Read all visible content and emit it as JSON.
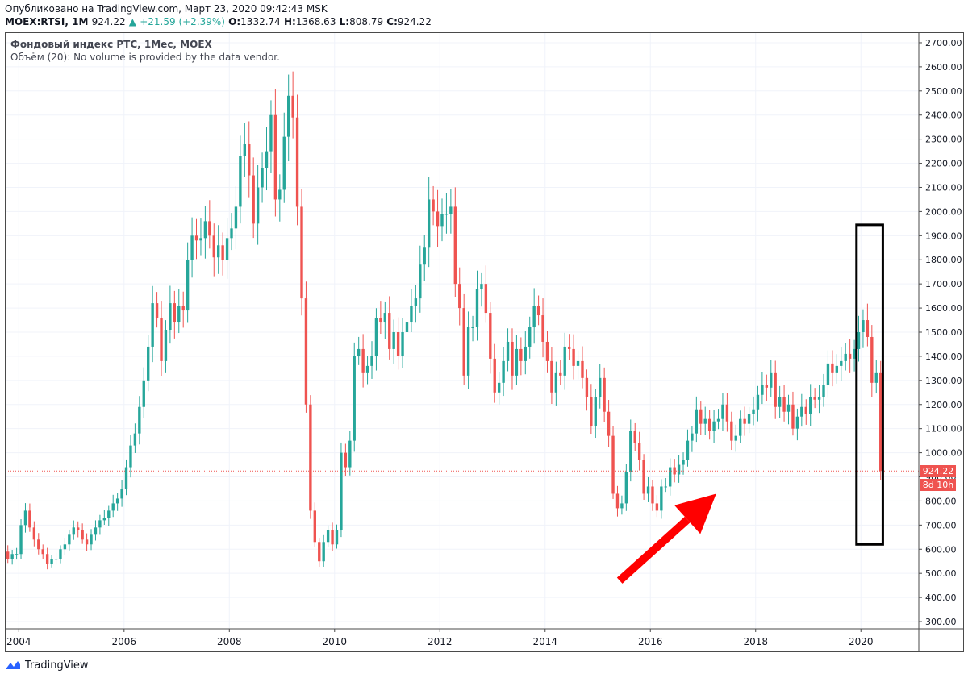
{
  "header": {
    "published": "Опубликовано на TradingView.com, Март 23, 2020 09:42:43 MSK",
    "symbol": "MOEX:RTSI, 1M",
    "last": "924.22",
    "change": "+21.59 (+2.39%)",
    "change_arrow": "▲",
    "o_label": "O:",
    "o": "1332.74",
    "h_label": "H:",
    "h": "1368.63",
    "l_label": "L:",
    "l": "808.79",
    "c_label": "C:",
    "c": "924.22"
  },
  "legend": {
    "title": "Фондовый индекс РТС, 1Мес, MOEX",
    "volume": "Объём (20): No volume is provided by the data vendor."
  },
  "footer": {
    "brand": "TradingView"
  },
  "price_tag": "924.22",
  "time_tag": "8d 10h",
  "colors": {
    "up": "#26a69a",
    "down": "#ef5350",
    "annotation": "#ff0000",
    "box": "#000000",
    "grid": "#f0f3fa"
  },
  "chart_data": {
    "type": "candlestick",
    "interval": "1M",
    "x_ticks": [
      "2004",
      "2006",
      "2008",
      "2010",
      "2012",
      "2014",
      "2016",
      "2018",
      "2020"
    ],
    "y_ticks": [
      300,
      400,
      500,
      600,
      700,
      800,
      900,
      1000,
      1100,
      1200,
      1300,
      1400,
      1500,
      1600,
      1700,
      1800,
      1900,
      2000,
      2100,
      2200,
      2300,
      2400,
      2500,
      2600,
      2700
    ],
    "y_tick_labels": [
      "300.00",
      "400.00",
      "500.00",
      "600.00",
      "700.00",
      "800.00",
      "900.00",
      "1000.00",
      "1100.00",
      "1200.00",
      "1300.00",
      "1400.00",
      "1500.00",
      "1600.00",
      "1700.00",
      "1800.00",
      "1900.00",
      "2000.00",
      "2100.00",
      "2200.00",
      "2300.00",
      "2400.00",
      "2500.00",
      "2600.00",
      "2700.00"
    ],
    "ylim": [
      270,
      2740
    ],
    "xlim": [
      2003.75,
      2021.1
    ],
    "last_price": 924.22,
    "close_series_start": "2003-09",
    "close_series_step": "1 month",
    "closes": [
      590,
      560,
      580,
      580,
      700,
      760,
      690,
      640,
      600,
      580,
      540,
      560,
      560,
      600,
      620,
      660,
      690,
      680,
      640,
      620,
      660,
      690,
      720,
      730,
      760,
      790,
      810,
      850,
      940,
      1030,
      1080,
      1190,
      1300,
      1440,
      1620,
      1560,
      1380,
      1510,
      1620,
      1540,
      1610,
      1590,
      1800,
      1900,
      1880,
      1890,
      1960,
      1900,
      1810,
      1860,
      1800,
      1890,
      1930,
      2020,
      2230,
      2280,
      2150,
      1950,
      2100,
      2180,
      2250,
      2400,
      2050,
      2090,
      2310,
      2480,
      2390,
      2020,
      1640,
      1200,
      760,
      630,
      550,
      630,
      680,
      620,
      680,
      1000,
      940,
      1050,
      1400,
      1430,
      1330,
      1360,
      1400,
      1560,
      1540,
      1580,
      1430,
      1500,
      1400,
      1500,
      1540,
      1610,
      1640,
      1780,
      1850,
      2050,
      2000,
      1940,
      1990,
      1990,
      2020,
      1700,
      1600,
      1320,
      1520,
      1520,
      1680,
      1700,
      1580,
      1390,
      1250,
      1290,
      1380,
      1460,
      1320,
      1430,
      1380,
      1440,
      1520,
      1610,
      1570,
      1460,
      1380,
      1250,
      1330,
      1320,
      1440,
      1430,
      1360,
      1380,
      1310,
      1230,
      1110,
      1230,
      1310,
      1170,
      1070,
      830,
      770,
      790,
      920,
      1090,
      1040,
      970,
      830,
      860,
      790,
      760,
      860,
      860,
      940,
      910,
      950,
      970,
      1050,
      1080,
      1180,
      1120,
      1140,
      1090,
      1130,
      1140,
      1200,
      1130,
      1050,
      1070,
      1140,
      1120,
      1160,
      1180,
      1240,
      1280,
      1270,
      1330,
      1190,
      1230,
      1170,
      1200,
      1100,
      1150,
      1190,
      1160,
      1230,
      1220,
      1230,
      1280,
      1370,
      1330,
      1360,
      1380,
      1410,
      1390,
      1430,
      1500,
      1550,
      1480,
      1290,
      1330,
      924.22
    ],
    "axis_label_x": "",
    "axis_label_y": "",
    "annotations": [
      {
        "type": "rectangle",
        "from": [
          "2019-12",
          620
        ],
        "to": [
          "2020-06",
          1945
        ]
      },
      {
        "type": "arrow",
        "from": [
          "2015-06",
          470
        ],
        "to": [
          "2017-04",
          830
        ]
      }
    ]
  }
}
